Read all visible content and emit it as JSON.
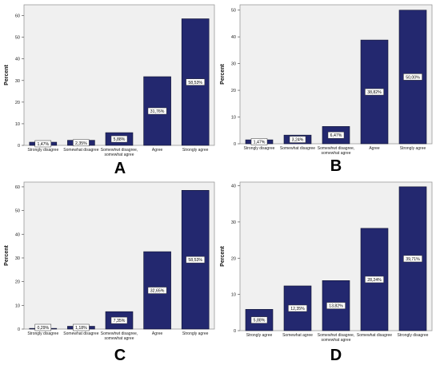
{
  "colors": {
    "bar_fill": "#23286f",
    "bar_stroke": "#111533",
    "plot_bg": "#f0f0f0",
    "label_bg": "#ffffff"
  },
  "chart_data": [
    {
      "panel": "A",
      "type": "bar",
      "ylabel": "Percent",
      "ylim": [
        0,
        65
      ],
      "yticks": [
        0,
        10,
        20,
        30,
        40,
        50,
        60
      ],
      "grid": false,
      "categories": [
        "Strongly disagree",
        "Somewhat disagree",
        "Somewhwt disagree, somewhat agree",
        "Agree",
        "Strongly agree"
      ],
      "category_lines": [
        [
          "Strongly disagree"
        ],
        [
          "Somewhat disagree"
        ],
        [
          "Somewhwt disagree,",
          "somewhat agree"
        ],
        [
          "Agree"
        ],
        [
          "Strongly agree"
        ]
      ],
      "values": [
        1.47,
        2.35,
        5.88,
        31.76,
        58.53
      ],
      "value_labels": [
        "1,47%",
        "2,35%",
        "5,88%",
        "31,76%",
        "58,53%"
      ]
    },
    {
      "panel": "B",
      "type": "bar",
      "ylabel": "Percent",
      "ylim": [
        0,
        52
      ],
      "yticks": [
        0,
        10,
        20,
        30,
        40,
        50
      ],
      "grid": false,
      "categories": [
        "Strongly disagree",
        "Somewhat disagree",
        "Somewhwt disagree, somewhat agree",
        "Agree",
        "Strongly agree"
      ],
      "category_lines": [
        [
          "Strongly disagree"
        ],
        [
          "Somewhat disagree"
        ],
        [
          "Somewhwt disagree,",
          "somewhat agree"
        ],
        [
          "Agree"
        ],
        [
          "Strongly agree"
        ]
      ],
      "values": [
        1.47,
        3.24,
        6.47,
        38.82,
        50.0
      ],
      "value_labels": [
        "1,47%",
        "3,24%",
        "6,47%",
        "38,82%",
        "50,00%"
      ]
    },
    {
      "panel": "C",
      "type": "bar",
      "ylabel": "Percent",
      "ylim": [
        0,
        62
      ],
      "yticks": [
        0,
        10,
        20,
        30,
        40,
        50,
        60
      ],
      "grid": false,
      "categories": [
        "Strongly disagree",
        "Somewhat disagree",
        "Somewhwt disagree, somewhat agree",
        "Agree",
        "Strongly agree"
      ],
      "category_lines": [
        [
          "Strongly disagree"
        ],
        [
          "Somewhat disagree"
        ],
        [
          "Somewhwt disagree,",
          "somewhat agree"
        ],
        [
          "Agree"
        ],
        [
          "Strongly agree"
        ]
      ],
      "values": [
        0.29,
        1.18,
        7.35,
        32.65,
        58.53
      ],
      "value_labels": [
        "0,29%",
        "1,18%",
        "7,35%",
        "32,65%",
        "58,53%"
      ]
    },
    {
      "panel": "D",
      "type": "bar",
      "ylabel": "Percent",
      "ylim": [
        0,
        41
      ],
      "yticks": [
        0,
        10,
        20,
        30,
        40
      ],
      "grid": false,
      "categories": [
        "Strongly agree",
        "Somewhat agree",
        "Somewhwt disagree, somewhat agree",
        "Somewhat disagree",
        "Strongly disagree"
      ],
      "category_lines": [
        [
          "Strongly agree"
        ],
        [
          "Somewhat agree"
        ],
        [
          "Somewhwt disagree,",
          "somewhat agree"
        ],
        [
          "Somewhat disagree"
        ],
        [
          "Strongly disagree"
        ]
      ],
      "values": [
        5.88,
        12.35,
        13.82,
        28.24,
        39.71
      ],
      "value_labels": [
        "5,88%",
        "12,35%",
        "13,82%",
        "28,24%",
        "39,71%"
      ]
    }
  ]
}
